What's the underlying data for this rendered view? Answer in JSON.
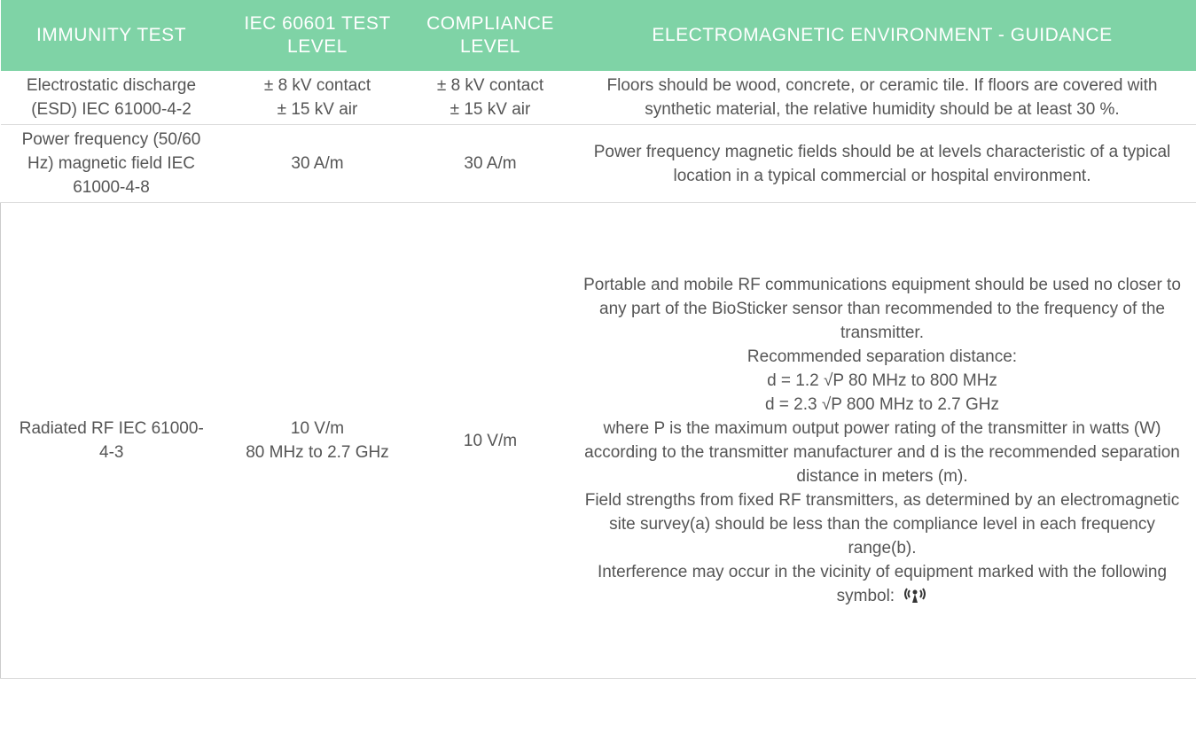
{
  "table": {
    "header": [
      "IMMUNITY TEST",
      "IEC 60601 TEST LEVEL",
      "COMPLIANCE LEVEL",
      "ELECTROMAGNETIC ENVIRONMENT - GUIDANCE"
    ],
    "rows": [
      [
        [
          "Electrostatic discharge (ESD) IEC 61000-4-2"
        ],
        [
          "± 8 kV contact",
          "± 15 kV air"
        ],
        [
          "± 8 kV contact",
          "± 15 kV air"
        ],
        [
          "Floors should be wood, concrete, or ceramic tile. If floors are covered with synthetic material, the relative humidity should be at least 30 %."
        ]
      ],
      [
        [
          "Power frequency (50/60 Hz) magnetic field IEC 61000-4-8"
        ],
        [
          "30 A/m"
        ],
        [
          "30 A/m"
        ],
        [
          "Power frequency magnetic fields should be at levels characteristic of a typical location in a typical commercial or hospital environment."
        ]
      ],
      [
        [
          "Radiated RF IEC 61000-4-3"
        ],
        [
          "10 V/m",
          "80 MHz to 2.7 GHz"
        ],
        [
          "10 V/m"
        ],
        [
          "Portable and mobile RF communications equipment should be used no closer to any part of the BioSticker sensor than recommended to the frequency of the transmitter.",
          "Recommended separation distance:",
          "d = 1.2 √P 80 MHz to 800 MHz",
          "d = 2.3 √P 800 MHz to 2.7 GHz",
          "where P is the maximum output power rating of the transmitter in watts (W) according to the transmitter manufacturer and d is the recommended separation distance in meters (m).",
          "Field strengths from fixed RF transmitters, as determined by an electromagnetic site survey(a) should be less than the compliance level in each frequency range(b).",
          "Interference may occur in the vicinity of equipment marked with the following symbol:"
        ]
      ]
    ]
  }
}
